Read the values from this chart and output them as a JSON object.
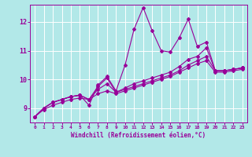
{
  "xlabel": "Windchill (Refroidissement éolien,°C)",
  "ylabel": "",
  "bg_color": "#b2e8e8",
  "grid_color": "#ffffff",
  "line_color": "#990099",
  "xlim": [
    -0.5,
    23.5
  ],
  "ylim": [
    8.5,
    12.6
  ],
  "yticks": [
    9,
    10,
    11,
    12
  ],
  "xticks": [
    0,
    1,
    2,
    3,
    4,
    5,
    6,
    7,
    8,
    9,
    10,
    11,
    12,
    13,
    14,
    15,
    16,
    17,
    18,
    19,
    20,
    21,
    22,
    23
  ],
  "series": [
    [
      8.7,
      9.0,
      9.2,
      9.3,
      9.4,
      9.45,
      9.1,
      9.8,
      10.1,
      9.6,
      10.5,
      11.75,
      12.5,
      11.7,
      11.0,
      10.95,
      11.45,
      12.1,
      11.15,
      11.3,
      10.3,
      10.3,
      10.35,
      10.4
    ],
    [
      8.7,
      9.0,
      9.2,
      9.3,
      9.4,
      9.45,
      9.3,
      9.75,
      10.05,
      9.55,
      9.7,
      9.85,
      9.95,
      10.05,
      10.15,
      10.25,
      10.45,
      10.7,
      10.8,
      11.1,
      10.3,
      10.3,
      10.35,
      10.4
    ],
    [
      8.7,
      9.0,
      9.2,
      9.3,
      9.4,
      9.45,
      9.3,
      9.65,
      9.85,
      9.55,
      9.65,
      9.75,
      9.85,
      9.95,
      10.05,
      10.15,
      10.3,
      10.5,
      10.65,
      10.8,
      10.3,
      10.3,
      10.35,
      10.4
    ],
    [
      8.7,
      8.95,
      9.1,
      9.2,
      9.3,
      9.35,
      9.3,
      9.5,
      9.6,
      9.5,
      9.6,
      9.7,
      9.8,
      9.9,
      10.0,
      10.1,
      10.25,
      10.4,
      10.55,
      10.65,
      10.25,
      10.25,
      10.3,
      10.35
    ]
  ],
  "marker": "D",
  "markersize": 2.0,
  "linewidth": 0.8
}
